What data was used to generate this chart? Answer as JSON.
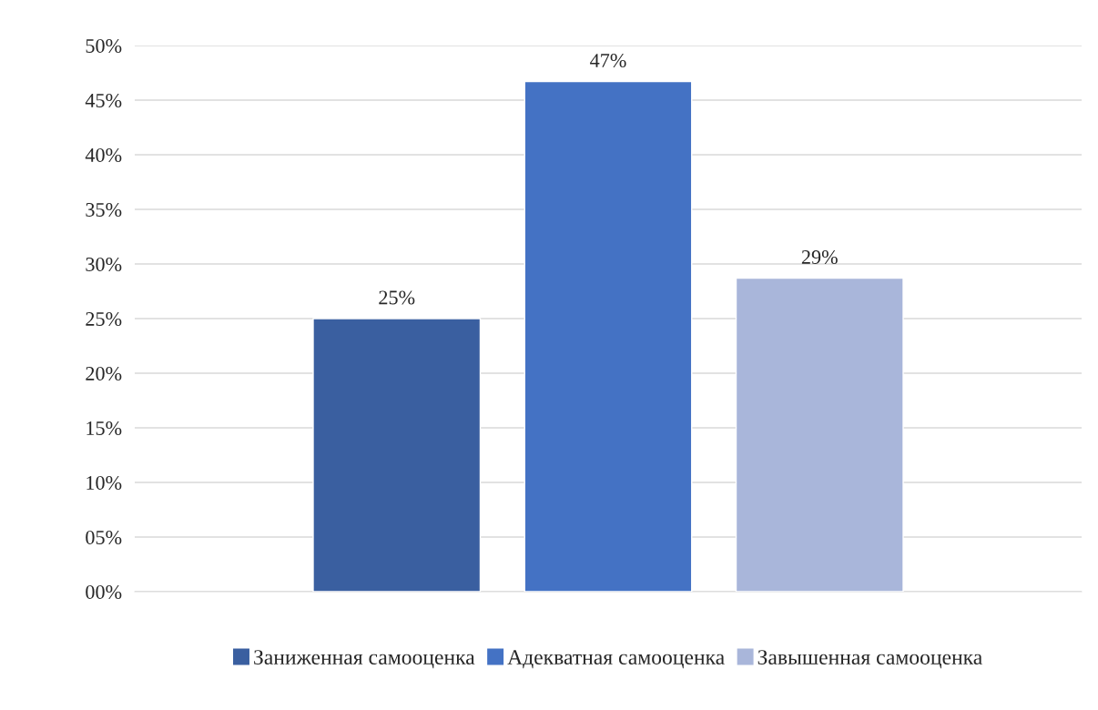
{
  "chart_data": {
    "type": "bar",
    "categories": [
      null
    ],
    "series": [
      {
        "name": "Заниженная самооценка",
        "color": "#3a5fa0",
        "values": [
          25
        ],
        "value_labels": [
          "25%"
        ]
      },
      {
        "name": "Адекватная самооценка",
        "color": "#4472c4",
        "values": [
          46.7
        ],
        "value_labels": [
          "47%"
        ]
      },
      {
        "name": "Завышенная самооценка",
        "color": "#a9b6da",
        "values": [
          28.7
        ],
        "value_labels": [
          "29%"
        ]
      }
    ],
    "ylim": [
      0,
      50
    ],
    "yticks": [
      {
        "value": 0,
        "label": "00%"
      },
      {
        "value": 5,
        "label": "05%"
      },
      {
        "value": 10,
        "label": "10%"
      },
      {
        "value": 15,
        "label": "15%"
      },
      {
        "value": 20,
        "label": "20%"
      },
      {
        "value": 25,
        "label": "25%"
      },
      {
        "value": 30,
        "label": "30%"
      },
      {
        "value": 35,
        "label": "35%"
      },
      {
        "value": 40,
        "label": "40%"
      },
      {
        "value": 45,
        "label": "45%"
      },
      {
        "value": 50,
        "label": "50%"
      }
    ],
    "grid": "y",
    "legend": "bottom"
  }
}
